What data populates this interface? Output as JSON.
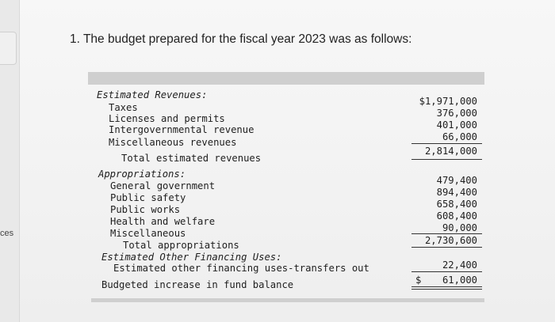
{
  "sidebar": {
    "label": "ces"
  },
  "question": "1. The budget prepared for the fiscal year 2023 was as follows:",
  "revenues": {
    "heading": "Estimated Revenues:",
    "items": [
      {
        "label": "Taxes",
        "value": "$1,971,000"
      },
      {
        "label": "Licenses and permits",
        "value": "376,000"
      },
      {
        "label": "Intergovernmental revenue",
        "value": "401,000"
      },
      {
        "label": "Miscellaneous revenues",
        "value": "66,000"
      }
    ],
    "total_label": "Total estimated revenues",
    "total_value": "2,814,000"
  },
  "appropriations": {
    "heading": "Appropriations:",
    "items": [
      {
        "label": "General government",
        "value": "479,400"
      },
      {
        "label": "Public safety",
        "value": "894,400"
      },
      {
        "label": "Public works",
        "value": "658,400"
      },
      {
        "label": "Health and welfare",
        "value": "608,400"
      },
      {
        "label": "Miscellaneous",
        "value": "90,000"
      }
    ],
    "total_label": "Total appropriations",
    "total_value": "2,730,600"
  },
  "other_financing": {
    "heading": "Estimated Other Financing Uses:",
    "item_label": "Estimated other financing uses-transfers out",
    "item_value": "22,400"
  },
  "fund_balance": {
    "label": "Budgeted increase in fund balance",
    "currency": "$",
    "value": "61,000"
  }
}
